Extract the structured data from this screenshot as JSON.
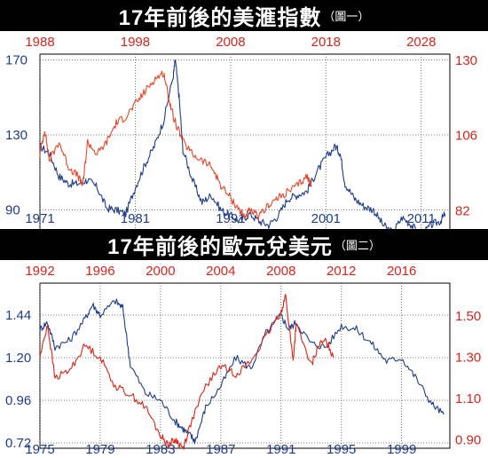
{
  "chart_data": [
    {
      "type": "line",
      "title": "17年前後的美滙指數",
      "subtitle": "（圖一）",
      "bottom_axis": {
        "ticks": [
          "1971",
          "1981",
          "1991",
          "2001",
          "2011"
        ],
        "range": [
          1971,
          2014
        ]
      },
      "top_axis": {
        "ticks": [
          "1988",
          "1998",
          "2008",
          "2018",
          "2028"
        ],
        "range": [
          1988,
          2031
        ]
      },
      "left_axis": {
        "ticks": [
          "170",
          "130",
          "90"
        ],
        "values": [
          170,
          130,
          90
        ],
        "range": [
          78,
          173
        ]
      },
      "right_axis": {
        "ticks": [
          "130",
          "106",
          "82"
        ],
        "values": [
          130,
          106,
          82
        ],
        "range": [
          75,
          132
        ]
      },
      "grid": true,
      "colors": {
        "blue_series": "#1f3c8c",
        "red_series": "#e8462a",
        "top_axis_text": "#d7261e",
        "bottom_axis_text": "#1f3c8c"
      },
      "series": [
        {
          "axis": "bottom-left",
          "color": "#1f3c8c",
          "points": [
            [
              1971,
              124
            ],
            [
              1972,
              120
            ],
            [
              1973,
              108
            ],
            [
              1974,
              104
            ],
            [
              1975,
              104
            ],
            [
              1976,
              106
            ],
            [
              1977,
              102
            ],
            [
              1978,
              91
            ],
            [
              1979,
              90
            ],
            [
              1980,
              88
            ],
            [
              1981,
              102
            ],
            [
              1982,
              114
            ],
            [
              1983,
              124
            ],
            [
              1984,
              138
            ],
            [
              1985,
              162
            ],
            [
              1985.2,
              170
            ],
            [
              1985.6,
              150
            ],
            [
              1986,
              122
            ],
            [
              1987,
              106
            ],
            [
              1988,
              94
            ],
            [
              1989,
              98
            ],
            [
              1990,
              90
            ],
            [
              1991,
              87
            ],
            [
              1992,
              84
            ],
            [
              1993,
              88
            ],
            [
              1994,
              84
            ],
            [
              1995,
              82
            ],
            [
              1996,
              87
            ],
            [
              1997,
              96
            ],
            [
              1998,
              98
            ],
            [
              1999,
              100
            ],
            [
              2000,
              110
            ],
            [
              2001,
              118
            ],
            [
              2002,
              124
            ],
            [
              2002.5,
              120
            ],
            [
              2003,
              104
            ],
            [
              2004,
              96
            ],
            [
              2005,
              92
            ],
            [
              2006,
              90
            ],
            [
              2007,
              82
            ],
            [
              2008,
              78
            ],
            [
              2009,
              86
            ],
            [
              2010,
              82
            ],
            [
              2011,
              76
            ],
            [
              2012,
              82
            ],
            [
              2013,
              84
            ],
            [
              2013.5,
              88
            ]
          ]
        },
        {
          "axis": "top-right",
          "color": "#e8462a",
          "points": [
            [
              1988,
              100
            ],
            [
              1988.5,
              108
            ],
            [
              1989,
              98
            ],
            [
              1990,
              104
            ],
            [
              1991,
              96
            ],
            [
              1992,
              93
            ],
            [
              1992.5,
              90
            ],
            [
              1993,
              104
            ],
            [
              1994,
              100
            ],
            [
              1995,
              104
            ],
            [
              1996,
              110
            ],
            [
              1997,
              112
            ],
            [
              1998,
              116
            ],
            [
              1999,
              120
            ],
            [
              2000,
              124
            ],
            [
              2001,
              126
            ],
            [
              2001.5,
              118
            ],
            [
              2002,
              112
            ],
            [
              2003,
              104
            ],
            [
              2004,
              100
            ],
            [
              2005,
              98
            ],
            [
              2006,
              96
            ],
            [
              2007,
              90
            ],
            [
              2008,
              86
            ],
            [
              2009,
              82
            ],
            [
              2009.5,
              80
            ],
            [
              2010,
              82
            ],
            [
              2011,
              80
            ],
            [
              2012,
              84
            ],
            [
              2013,
              86
            ],
            [
              2014,
              88
            ],
            [
              2015,
              90
            ],
            [
              2016,
              93
            ],
            [
              2016.5,
              90
            ]
          ]
        }
      ]
    },
    {
      "type": "line",
      "title": "17年前後的歐元兌美元",
      "subtitle": "（圖二）",
      "bottom_axis": {
        "ticks": [
          "1975",
          "1979",
          "1983",
          "1987",
          "1991",
          "1995",
          "1999"
        ],
        "range": [
          1975,
          2002.2
        ]
      },
      "top_axis": {
        "ticks": [
          "1992",
          "1996",
          "2000",
          "2004",
          "2008",
          "2012",
          "2016"
        ],
        "range": [
          1992,
          2019.2
        ]
      },
      "left_axis": {
        "ticks": [
          "1.44",
          "1.20",
          "0.96",
          "0.72"
        ],
        "values": [
          1.44,
          1.2,
          0.96,
          0.72
        ],
        "range": [
          0.69,
          1.62
        ]
      },
      "right_axis": {
        "ticks": [
          "1.50",
          "1.30",
          "1.10",
          "0.90"
        ],
        "values": [
          1.5,
          1.3,
          1.1,
          0.9
        ],
        "range": [
          0.86,
          1.66
        ]
      },
      "grid": true,
      "colors": {
        "blue_series": "#1f3c8c",
        "red_series": "#e02414",
        "top_axis_text": "#d7261e",
        "bottom_axis_text": "#1f3c8c"
      },
      "series": [
        {
          "axis": "bottom-left",
          "color": "#1f3c8c",
          "points": [
            [
              1975,
              1.36
            ],
            [
              1975.5,
              1.4
            ],
            [
              1976,
              1.26
            ],
            [
              1977,
              1.3
            ],
            [
              1978,
              1.42
            ],
            [
              1978.5,
              1.5
            ],
            [
              1979,
              1.44
            ],
            [
              1980,
              1.52
            ],
            [
              1980.5,
              1.48
            ],
            [
              1981,
              1.16
            ],
            [
              1982,
              1.0
            ],
            [
              1983,
              0.96
            ],
            [
              1984,
              0.84
            ],
            [
              1984.5,
              0.8
            ],
            [
              1985,
              0.76
            ],
            [
              1985.3,
              0.73
            ],
            [
              1986,
              0.92
            ],
            [
              1987,
              1.04
            ],
            [
              1988,
              1.2
            ],
            [
              1989,
              1.14
            ],
            [
              1990,
              1.34
            ],
            [
              1991,
              1.44
            ],
            [
              1991.5,
              1.36
            ],
            [
              1992,
              1.4
            ],
            [
              1993,
              1.28
            ],
            [
              1994,
              1.26
            ],
            [
              1995,
              1.38
            ],
            [
              1996,
              1.36
            ],
            [
              1997,
              1.28
            ],
            [
              1998,
              1.18
            ],
            [
              1999,
              1.2
            ],
            [
              2000,
              1.08
            ],
            [
              2001,
              0.94
            ],
            [
              2001.8,
              0.88
            ]
          ]
        },
        {
          "axis": "top-right",
          "color": "#e02414",
          "points": [
            [
              1992,
              1.3
            ],
            [
              1992.5,
              1.46
            ],
            [
              1993,
              1.2
            ],
            [
              1994,
              1.24
            ],
            [
              1995,
              1.36
            ],
            [
              1996,
              1.3
            ],
            [
              1997,
              1.16
            ],
            [
              1998,
              1.12
            ],
            [
              1999,
              1.06
            ],
            [
              2000,
              0.92
            ],
            [
              2000.5,
              0.88
            ],
            [
              2001,
              0.9
            ],
            [
              2001.5,
              0.86
            ],
            [
              2002,
              0.98
            ],
            [
              2003,
              1.16
            ],
            [
              2004,
              1.26
            ],
            [
              2005,
              1.22
            ],
            [
              2006,
              1.28
            ],
            [
              2007,
              1.4
            ],
            [
              2008,
              1.52
            ],
            [
              2008.3,
              1.6
            ],
            [
              2008.8,
              1.28
            ],
            [
              2009,
              1.46
            ],
            [
              2010,
              1.26
            ],
            [
              2010.5,
              1.36
            ],
            [
              2011,
              1.38
            ],
            [
              2011.5,
              1.3
            ]
          ]
        }
      ]
    }
  ]
}
